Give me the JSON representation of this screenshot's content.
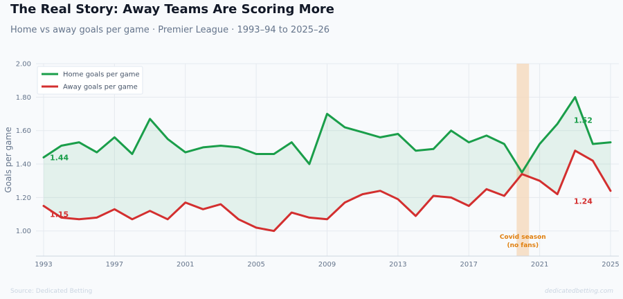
{
  "header": {
    "title": "The Real Story: Away Teams Are Scoring More",
    "subtitle": "Home vs away goals per game · Premier League · 1993–94 to 2025–26"
  },
  "footer": {
    "source": "Source: Dedicated Betting",
    "site": "dedicatedbetting.com"
  },
  "colors": {
    "home": "#1a9e4a",
    "away": "#d32f2f",
    "covid": "#f6d7b8",
    "covid_text": "#e07f0e"
  },
  "chart_data": {
    "type": "line",
    "x": [
      1993,
      1994,
      1995,
      1996,
      1997,
      1998,
      1999,
      2000,
      2001,
      2002,
      2003,
      2004,
      2005,
      2006,
      2007,
      2008,
      2009,
      2010,
      2011,
      2012,
      2013,
      2014,
      2015,
      2016,
      2017,
      2018,
      2019,
      2020,
      2021,
      2022,
      2023,
      2024,
      2025
    ],
    "series": [
      {
        "name": "Home goals per game",
        "color": "#1a9e4a",
        "values": [
          1.44,
          1.51,
          1.53,
          1.47,
          1.56,
          1.46,
          1.67,
          1.55,
          1.47,
          1.5,
          1.51,
          1.5,
          1.46,
          1.46,
          1.53,
          1.4,
          1.7,
          1.62,
          1.59,
          1.56,
          1.58,
          1.48,
          1.49,
          1.6,
          1.53,
          1.57,
          1.52,
          1.35,
          1.52,
          1.64,
          1.8,
          1.52,
          1.53
        ]
      },
      {
        "name": "Away goals per game",
        "color": "#d32f2f",
        "values": [
          1.15,
          1.08,
          1.07,
          1.08,
          1.13,
          1.07,
          1.12,
          1.07,
          1.17,
          1.13,
          1.16,
          1.07,
          1.02,
          1.0,
          1.11,
          1.08,
          1.07,
          1.17,
          1.22,
          1.24,
          1.19,
          1.09,
          1.21,
          1.2,
          1.15,
          1.25,
          1.21,
          1.34,
          1.3,
          1.22,
          1.48,
          1.42,
          1.24
        ]
      }
    ],
    "ylabel": "Goals per game",
    "ylim": [
      0.85,
      2.0
    ],
    "yticks": [
      1.0,
      1.2,
      1.4,
      1.6,
      1.8,
      2.0
    ],
    "ytick_labels": [
      "1.00",
      "1.20",
      "1.40",
      "1.60",
      "1.80",
      "2.00"
    ],
    "xticks": [
      1993,
      1997,
      2001,
      2005,
      2009,
      2013,
      2017,
      2021,
      2025
    ],
    "xlim": [
      1993,
      2025
    ],
    "grid": true,
    "legend_position": "top-left",
    "annotations": [
      {
        "text": "1.44",
        "x": 1993,
        "series": "home"
      },
      {
        "text": "1.15",
        "x": 1993,
        "series": "away"
      },
      {
        "text": "1.52",
        "x": 2023,
        "series": "home"
      },
      {
        "text": "1.24",
        "x": 2023,
        "series": "away"
      }
    ],
    "covid_band": {
      "x_start": 2019.7,
      "x_end": 2020.4,
      "label_line1": "Covid season",
      "label_line2": "(no fans)"
    }
  }
}
